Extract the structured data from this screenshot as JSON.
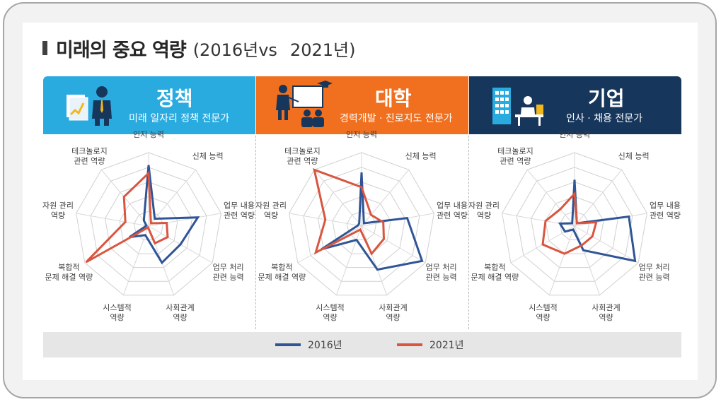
{
  "title": {
    "main": "미래의 중요 역량",
    "sub_open": "(2016년vs",
    "sub_close": "2021년)"
  },
  "panels": [
    {
      "title": "정책",
      "subtitle": "미래 일자리 정책 전문가",
      "color": "#2aabe0"
    },
    {
      "title": "대학",
      "subtitle": "경력개발 · 진로지도 전문가",
      "color": "#f07020"
    },
    {
      "title": "기업",
      "subtitle": "인사 · 채용 전문가",
      "color": "#16365c"
    }
  ],
  "legend": [
    {
      "label": "2016년",
      "color": "#2f5597"
    },
    {
      "label": "2021년",
      "color": "#d9553f"
    }
  ],
  "chart_data": [
    {
      "type": "radar",
      "title": "정책",
      "axes": [
        [
          "인지 능력"
        ],
        [
          "신체 능력"
        ],
        [
          "업무 내용",
          "관련 역량"
        ],
        [
          "업무 처리",
          "관련 능력"
        ],
        [
          "사회관계",
          "역량"
        ],
        [
          "시스템적",
          "역량"
        ],
        [
          "복합적",
          "문제 해결 역량"
        ],
        [
          "자원 관리",
          "역량"
        ],
        [
          "테크놀로지",
          "관련 역량"
        ]
      ],
      "series": [
        {
          "name": "2016년",
          "values": [
            0.83,
            0.13,
            0.68,
            0.5,
            0.53,
            0.13,
            0.3,
            0.03,
            0.1
          ]
        },
        {
          "name": "2021년",
          "values": [
            0.72,
            0.05,
            0.25,
            0.3,
            0.25,
            0.02,
            0.98,
            0.32,
            0.52
          ]
        }
      ]
    },
    {
      "type": "radar",
      "title": "대학",
      "axes": [
        [
          "인지 능력"
        ],
        [
          "신체 능력"
        ],
        [
          "업무 내용",
          "관련 역량"
        ],
        [
          "업무 처리",
          "관련 능력"
        ],
        [
          "사회관계",
          "역량"
        ],
        [
          "시스템적",
          "역량"
        ],
        [
          "복합적",
          "문제 해결 역량"
        ],
        [
          "자원 관리",
          "역량"
        ],
        [
          "테크놀로지",
          "관련 역량"
        ]
      ],
      "series": [
        {
          "name": "2016년",
          "values": [
            0.73,
            0.05,
            0.63,
            0.95,
            0.63,
            0.2,
            0.63,
            0.05,
            0.05
          ]
        },
        {
          "name": "2021년",
          "values": [
            0.53,
            0.2,
            0.3,
            0.35,
            0.4,
            0.05,
            0.72,
            0.5,
            1.0
          ]
        }
      ]
    },
    {
      "type": "radar",
      "title": "기업",
      "axes": [
        [
          "인지 능력"
        ],
        [
          "신체 능력"
        ],
        [
          "업무 내용",
          "관련 역량"
        ],
        [
          "업무 처리",
          "관련 능력"
        ],
        [
          "사회관계",
          "역량"
        ],
        [
          "시스템적",
          "역량"
        ],
        [
          "복합적",
          "문제 해결 역량"
        ],
        [
          "자원 관리",
          "역량"
        ],
        [
          "테크놀로지",
          "관련 역량"
        ]
      ],
      "series": [
        {
          "name": "2016년",
          "values": [
            0.63,
            0.05,
            0.75,
            0.95,
            0.35,
            0.05,
            0.15,
            0.2,
            0.05
          ]
        },
        {
          "name": "2021년",
          "values": [
            0.44,
            0.05,
            0.3,
            0.28,
            0.28,
            0.4,
            0.5,
            0.4,
            0.3
          ]
        }
      ]
    }
  ]
}
